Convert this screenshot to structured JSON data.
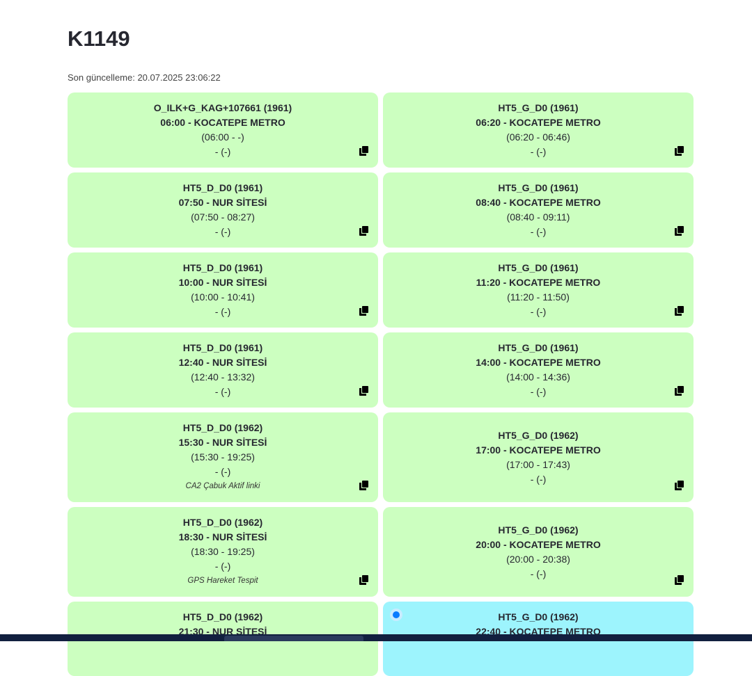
{
  "page": {
    "title": "K1149",
    "updated": "Son güncelleme: 20.07.2025 23:06:22"
  },
  "colors": {
    "card_default": "#ccffc0",
    "card_active": "#9df4fd",
    "active_dot": "#0a7cff"
  },
  "cards": [
    {
      "code": "O_ILK+G_KAG+107661 (1961)",
      "trip": "06:00 - KOCATEPE METRO",
      "range": "(06:00 - -)",
      "extra": "- (-)",
      "note": "",
      "icon": "copy-icon"
    },
    {
      "code": "HT5_G_D0 (1961)",
      "trip": "06:20 - KOCATEPE METRO",
      "range": "(06:20 - 06:46)",
      "extra": "- (-)",
      "note": "",
      "icon": "copy-icon"
    },
    {
      "code": "HT5_D_D0 (1961)",
      "trip": "07:50 - NUR SİTESİ",
      "range": "(07:50 - 08:27)",
      "extra": "- (-)",
      "note": "",
      "icon": "copy-icon"
    },
    {
      "code": "HT5_G_D0 (1961)",
      "trip": "08:40 - KOCATEPE METRO",
      "range": "(08:40 - 09:11)",
      "extra": "- (-)",
      "note": "",
      "icon": "copy-icon"
    },
    {
      "code": "HT5_D_D0 (1961)",
      "trip": "10:00 - NUR SİTESİ",
      "range": "(10:00 - 10:41)",
      "extra": "- (-)",
      "note": "",
      "icon": "copy-icon"
    },
    {
      "code": "HT5_G_D0 (1961)",
      "trip": "11:20 - KOCATEPE METRO",
      "range": "(11:20 - 11:50)",
      "extra": "- (-)",
      "note": "",
      "icon": "copy-icon"
    },
    {
      "code": "HT5_D_D0 (1961)",
      "trip": "12:40 - NUR SİTESİ",
      "range": "(12:40 - 13:32)",
      "extra": "- (-)",
      "note": "",
      "icon": "copy-icon"
    },
    {
      "code": "HT5_G_D0 (1961)",
      "trip": "14:00 - KOCATEPE METRO",
      "range": "(14:00 - 14:36)",
      "extra": "- (-)",
      "note": "",
      "icon": "copy-icon"
    },
    {
      "code": "HT5_D_D0 (1962)",
      "trip": "15:30 - NUR SİTESİ",
      "range": "(15:30 - 19:25)",
      "extra": "- (-)",
      "note": "CA2 Çabuk Aktif linki",
      "icon": "copy-icon"
    },
    {
      "code": "HT5_G_D0 (1962)",
      "trip": "17:00 - KOCATEPE METRO",
      "range": "(17:00 - 17:43)",
      "extra": "- (-)",
      "note": "",
      "icon": "copy-icon"
    },
    {
      "code": "HT5_D_D0 (1962)",
      "trip": "18:30 - NUR SİTESİ",
      "range": "(18:30 - 19:25)",
      "extra": "- (-)",
      "note": "GPS Hareket Tespit",
      "icon": "copy-icon"
    },
    {
      "code": "HT5_G_D0 (1962)",
      "trip": "20:00 - KOCATEPE METRO",
      "range": "(20:00 - 20:38)",
      "extra": "- (-)",
      "note": "",
      "icon": "copy-icon"
    },
    {
      "code": "HT5_D_D0 (1962)",
      "trip": "21:30 - NUR SİTESİ",
      "range": "",
      "extra": "",
      "note": "",
      "icon": "copy-icon"
    },
    {
      "code": "HT5_G_D0 (1962)",
      "trip": "22:40 - KOCATEPE METRO",
      "range": "",
      "extra": "",
      "note": "",
      "icon": "copy-icon",
      "active": true
    }
  ]
}
